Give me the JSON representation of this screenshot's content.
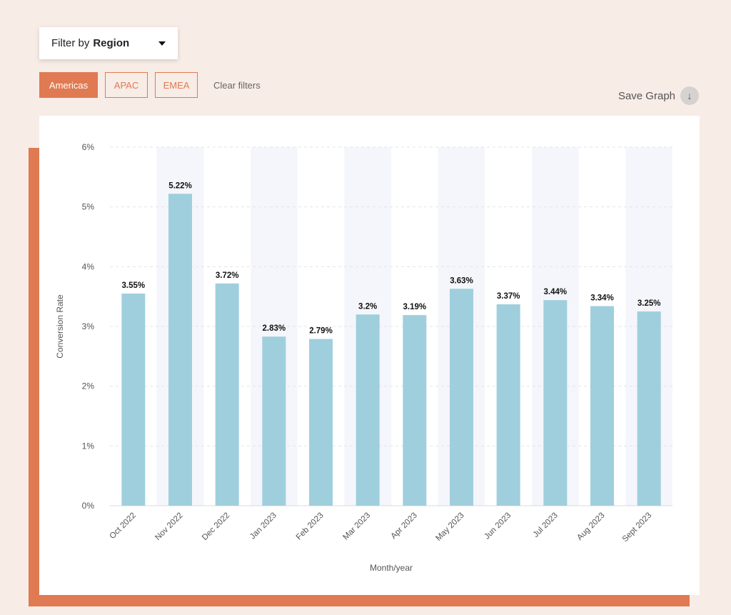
{
  "filter": {
    "prefix": "Filter by",
    "field": "Region"
  },
  "chips": [
    {
      "label": "Americas",
      "active": true
    },
    {
      "label": "APAC",
      "active": false
    },
    {
      "label": "EMEA",
      "active": false
    }
  ],
  "clear_label": "Clear filters",
  "save_label": "Save Graph",
  "save_icon": "download-arrow-icon",
  "colors": {
    "accent": "#e07a52",
    "bar": "#9fcfdd",
    "band": "#f4f6fb"
  },
  "chart_data": {
    "type": "bar",
    "categories": [
      "Oct 2022",
      "Nov 2022",
      "Dec 2022",
      "Jan 2023",
      "Feb 2023",
      "Mar 2023",
      "Apr 2023",
      "May 2023",
      "Jun 2023",
      "Jul 2023",
      "Aug 2023",
      "Sept 2023"
    ],
    "values": [
      3.55,
      5.22,
      3.72,
      2.83,
      2.79,
      3.2,
      3.19,
      3.63,
      3.37,
      3.44,
      3.34,
      3.25
    ],
    "labels": [
      "3.55%",
      "5.22%",
      "3.72%",
      "2.83%",
      "2.79%",
      "3.2%",
      "3.19%",
      "3.63%",
      "3.37%",
      "3.44%",
      "3.34%",
      "3.25%"
    ],
    "yticks": [
      "0%",
      "1%",
      "2%",
      "3%",
      "4%",
      "5%",
      "6%"
    ],
    "ylim": [
      0,
      6
    ],
    "xlabel": "Month/year",
    "ylabel": "Conversion Rate",
    "grid": true
  }
}
